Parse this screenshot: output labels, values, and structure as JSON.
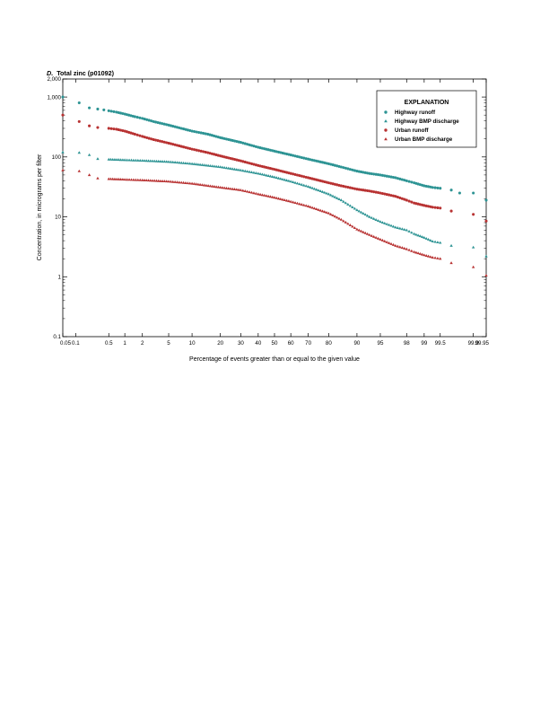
{
  "chart_data": {
    "type": "scatter",
    "panel_label": "D.",
    "title": "Total zinc (p01092)",
    "xlabel": "Percentage of events greater than or equal to the given value",
    "ylabel": "Concentration, in micrograms per filter",
    "x_scale": "normal-probability",
    "y_scale": "log",
    "xlim": [
      0.05,
      99.95
    ],
    "ylim": [
      0.1,
      2000
    ],
    "x_ticks": [
      0.05,
      0.1,
      0.5,
      1,
      2,
      5,
      10,
      20,
      30,
      40,
      50,
      60,
      70,
      80,
      90,
      95,
      98,
      99,
      99.5,
      99.9,
      99.95
    ],
    "x_tick_labels": [
      "0.05",
      "0.1",
      "0.5",
      "1",
      "2",
      "5",
      "10",
      "20",
      "30",
      "40",
      "50",
      "60",
      "70",
      "80",
      "90",
      "95",
      "98",
      "99",
      "99.5",
      "99.9",
      "99.95"
    ],
    "y_ticks": [
      0.1,
      1,
      10,
      100,
      1000,
      2000
    ],
    "y_tick_labels": [
      "0.1",
      "1",
      "10",
      "100",
      "1,000",
      "2,000"
    ],
    "grid": false,
    "legend_title": "EXPLANATION",
    "legend_position": "top-right",
    "series": [
      {
        "name": "Highway runoff",
        "marker": "circle",
        "color": "#2e9494",
        "points": [
          [
            0.05,
            1000
          ],
          [
            0.12,
            800
          ],
          [
            0.2,
            660
          ],
          [
            0.3,
            630
          ],
          [
            0.4,
            610
          ],
          [
            0.5,
            590
          ],
          [
            0.7,
            560
          ],
          [
            1,
            520
          ],
          [
            1.5,
            470
          ],
          [
            2,
            440
          ],
          [
            3,
            390
          ],
          [
            5,
            340
          ],
          [
            10,
            270
          ],
          [
            15,
            240
          ],
          [
            20,
            210
          ],
          [
            30,
            175
          ],
          [
            40,
            145
          ],
          [
            50,
            125
          ],
          [
            60,
            108
          ],
          [
            70,
            92
          ],
          [
            80,
            77
          ],
          [
            85,
            68
          ],
          [
            90,
            58
          ],
          [
            93,
            53
          ],
          [
            95,
            50
          ],
          [
            97,
            45
          ],
          [
            98,
            40
          ],
          [
            98.5,
            37
          ],
          [
            99,
            33
          ],
          [
            99.3,
            31
          ],
          [
            99.5,
            30
          ],
          [
            99.7,
            28
          ],
          [
            99.8,
            25
          ],
          [
            99.9,
            25
          ],
          [
            99.95,
            19
          ]
        ]
      },
      {
        "name": "Highway BMP discharge",
        "marker": "triangle",
        "color": "#2e9494",
        "points": [
          [
            0.05,
            120
          ],
          [
            0.12,
            118
          ],
          [
            0.2,
            108
          ],
          [
            0.3,
            93
          ],
          [
            0.5,
            91
          ],
          [
            1,
            89
          ],
          [
            2,
            87
          ],
          [
            5,
            83
          ],
          [
            10,
            77
          ],
          [
            20,
            68
          ],
          [
            30,
            60
          ],
          [
            40,
            53
          ],
          [
            50,
            46
          ],
          [
            60,
            39
          ],
          [
            70,
            32
          ],
          [
            80,
            24
          ],
          [
            85,
            19
          ],
          [
            90,
            13
          ],
          [
            93,
            10
          ],
          [
            95,
            8.3
          ],
          [
            97,
            6.7
          ],
          [
            98,
            6.0
          ],
          [
            98.5,
            5.2
          ],
          [
            99,
            4.5
          ],
          [
            99.3,
            3.9
          ],
          [
            99.5,
            3.7
          ],
          [
            99.7,
            3.3
          ],
          [
            99.9,
            3.1
          ],
          [
            99.95,
            2.2
          ]
        ]
      },
      {
        "name": "Urban runoff",
        "marker": "circle",
        "color": "#b83232",
        "points": [
          [
            0.05,
            500
          ],
          [
            0.12,
            390
          ],
          [
            0.2,
            330
          ],
          [
            0.3,
            310
          ],
          [
            0.5,
            300
          ],
          [
            0.7,
            290
          ],
          [
            1,
            270
          ],
          [
            1.5,
            240
          ],
          [
            2,
            220
          ],
          [
            3,
            195
          ],
          [
            5,
            170
          ],
          [
            10,
            135
          ],
          [
            15,
            118
          ],
          [
            20,
            104
          ],
          [
            30,
            86
          ],
          [
            40,
            72
          ],
          [
            50,
            62
          ],
          [
            60,
            53
          ],
          [
            70,
            45
          ],
          [
            80,
            37
          ],
          [
            85,
            33
          ],
          [
            90,
            29
          ],
          [
            93,
            27
          ],
          [
            95,
            25
          ],
          [
            97,
            22
          ],
          [
            98,
            19
          ],
          [
            98.5,
            17
          ],
          [
            99,
            15.5
          ],
          [
            99.3,
            14.5
          ],
          [
            99.5,
            14
          ],
          [
            99.7,
            12.5
          ],
          [
            99.9,
            11
          ],
          [
            99.95,
            8.5
          ]
        ]
      },
      {
        "name": "Urban BMP discharge",
        "marker": "triangle",
        "color": "#b83232",
        "points": [
          [
            0.05,
            60
          ],
          [
            0.12,
            58
          ],
          [
            0.2,
            50
          ],
          [
            0.3,
            44
          ],
          [
            0.5,
            43
          ],
          [
            1,
            42
          ],
          [
            2,
            41
          ],
          [
            5,
            39
          ],
          [
            10,
            36
          ],
          [
            20,
            31
          ],
          [
            30,
            28
          ],
          [
            40,
            24
          ],
          [
            50,
            21
          ],
          [
            60,
            18
          ],
          [
            70,
            15
          ],
          [
            80,
            11.5
          ],
          [
            85,
            9
          ],
          [
            90,
            6.2
          ],
          [
            93,
            5
          ],
          [
            95,
            4.2
          ],
          [
            97,
            3.3
          ],
          [
            98,
            2.9
          ],
          [
            98.5,
            2.6
          ],
          [
            99,
            2.3
          ],
          [
            99.3,
            2.1
          ],
          [
            99.5,
            2.0
          ],
          [
            99.7,
            1.7
          ],
          [
            99.9,
            1.45
          ],
          [
            99.95,
            1.05
          ]
        ]
      }
    ]
  }
}
